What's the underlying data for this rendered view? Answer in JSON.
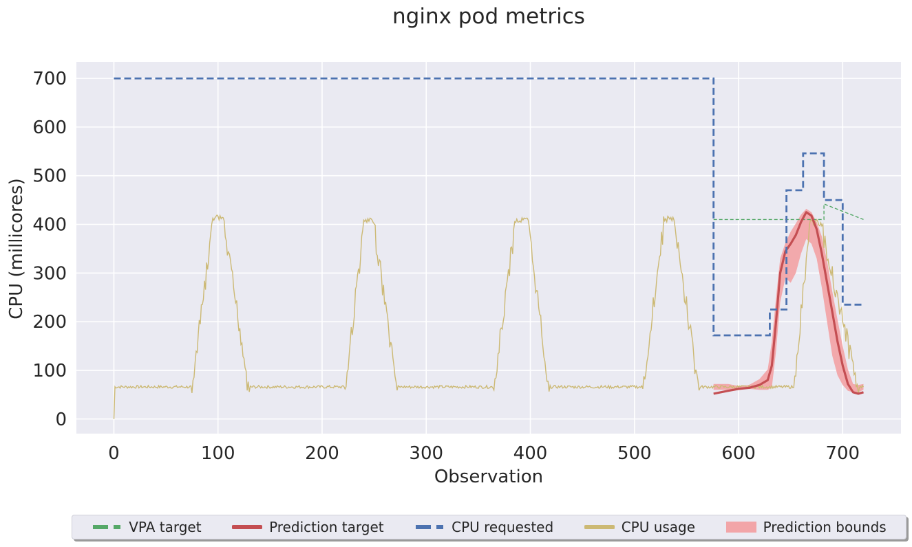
{
  "chart_data": {
    "type": "line",
    "title": "nginx pod metrics",
    "xlabel": "Observation",
    "ylabel": "CPU (millicores)",
    "xlim": [
      -36,
      756
    ],
    "ylim": [
      -30,
      734
    ],
    "xticks": [
      0,
      100,
      200,
      300,
      400,
      500,
      600,
      700
    ],
    "yticks": [
      0,
      100,
      200,
      300,
      400,
      500,
      600,
      700
    ],
    "grid": true,
    "legend_position": "bottom-center",
    "cpu_usage": {
      "baseline": 66,
      "peaks": [
        {
          "start": 75,
          "peak_start": 95,
          "peak_end": 105,
          "end": 130,
          "peak": 420
        },
        {
          "start": 222,
          "peak_start": 240,
          "peak_end": 250,
          "end": 272,
          "peak": 413
        },
        {
          "start": 365,
          "peak_start": 385,
          "peak_end": 398,
          "end": 418,
          "peak": 415
        },
        {
          "start": 508,
          "peak_start": 528,
          "peak_end": 538,
          "end": 562,
          "peak": 418
        },
        {
          "start": 653,
          "peak_start": 668,
          "peak_end": 680,
          "end": 715,
          "peak": 410
        }
      ],
      "x_end": 720
    },
    "series": [
      {
        "name": "VPA target",
        "color": "#55a868",
        "style": "dashed-thin",
        "x": [
          576,
          682,
          682,
          720
        ],
        "y": [
          410,
          410,
          442,
          410
        ]
      },
      {
        "name": "Prediction target",
        "color": "#c44e52",
        "style": "solid-thick",
        "x": [
          576,
          590,
          600,
          610,
          620,
          628,
          632,
          636,
          640,
          645,
          650,
          655,
          660,
          665,
          670,
          675,
          680,
          685,
          690,
          695,
          700,
          705,
          710,
          715,
          720
        ],
        "y": [
          52,
          58,
          62,
          64,
          70,
          80,
          110,
          200,
          300,
          345,
          360,
          378,
          405,
          425,
          418,
          390,
          340,
          280,
          220,
          160,
          110,
          72,
          55,
          52,
          55
        ]
      },
      {
        "name": "CPU requested",
        "color": "#4c72b0",
        "style": "dashed-thick",
        "x": [
          0,
          576,
          576,
          630,
          630,
          646,
          646,
          662,
          662,
          682,
          682,
          700,
          700,
          720
        ],
        "y": [
          700,
          700,
          172,
          172,
          225,
          225,
          470,
          470,
          546,
          546,
          450,
          450,
          235,
          235
        ]
      },
      {
        "name": "CPU usage",
        "color": "#ccb974",
        "style": "solid-thin"
      },
      {
        "name": "Prediction bounds",
        "color": "#f2a5a8",
        "style": "band",
        "x": [
          576,
          590,
          600,
          610,
          620,
          628,
          632,
          636,
          640,
          645,
          650,
          655,
          660,
          665,
          670,
          675,
          680,
          685,
          690,
          695,
          700,
          705,
          710,
          715,
          720
        ],
        "lower": [
          60,
          60,
          62,
          62,
          60,
          60,
          65,
          140,
          240,
          290,
          280,
          300,
          340,
          370,
          360,
          330,
          270,
          200,
          130,
          90,
          70,
          58,
          55,
          55,
          60
        ],
        "upper": [
          72,
          72,
          68,
          70,
          82,
          102,
          160,
          250,
          330,
          362,
          385,
          402,
          420,
          432,
          425,
          405,
          375,
          325,
          262,
          205,
          150,
          102,
          72,
          70,
          72
        ]
      }
    ]
  },
  "legend": {
    "items": [
      {
        "label": "VPA target",
        "color": "#55a868",
        "style": "dashed"
      },
      {
        "label": "Prediction target",
        "color": "#c44e52",
        "style": "solid"
      },
      {
        "label": "CPU requested",
        "color": "#4c72b0",
        "style": "dashed"
      },
      {
        "label": "CPU usage",
        "color": "#ccb974",
        "style": "solid"
      },
      {
        "label": "Prediction bounds",
        "color": "#f2a5a8",
        "style": "band"
      }
    ]
  }
}
